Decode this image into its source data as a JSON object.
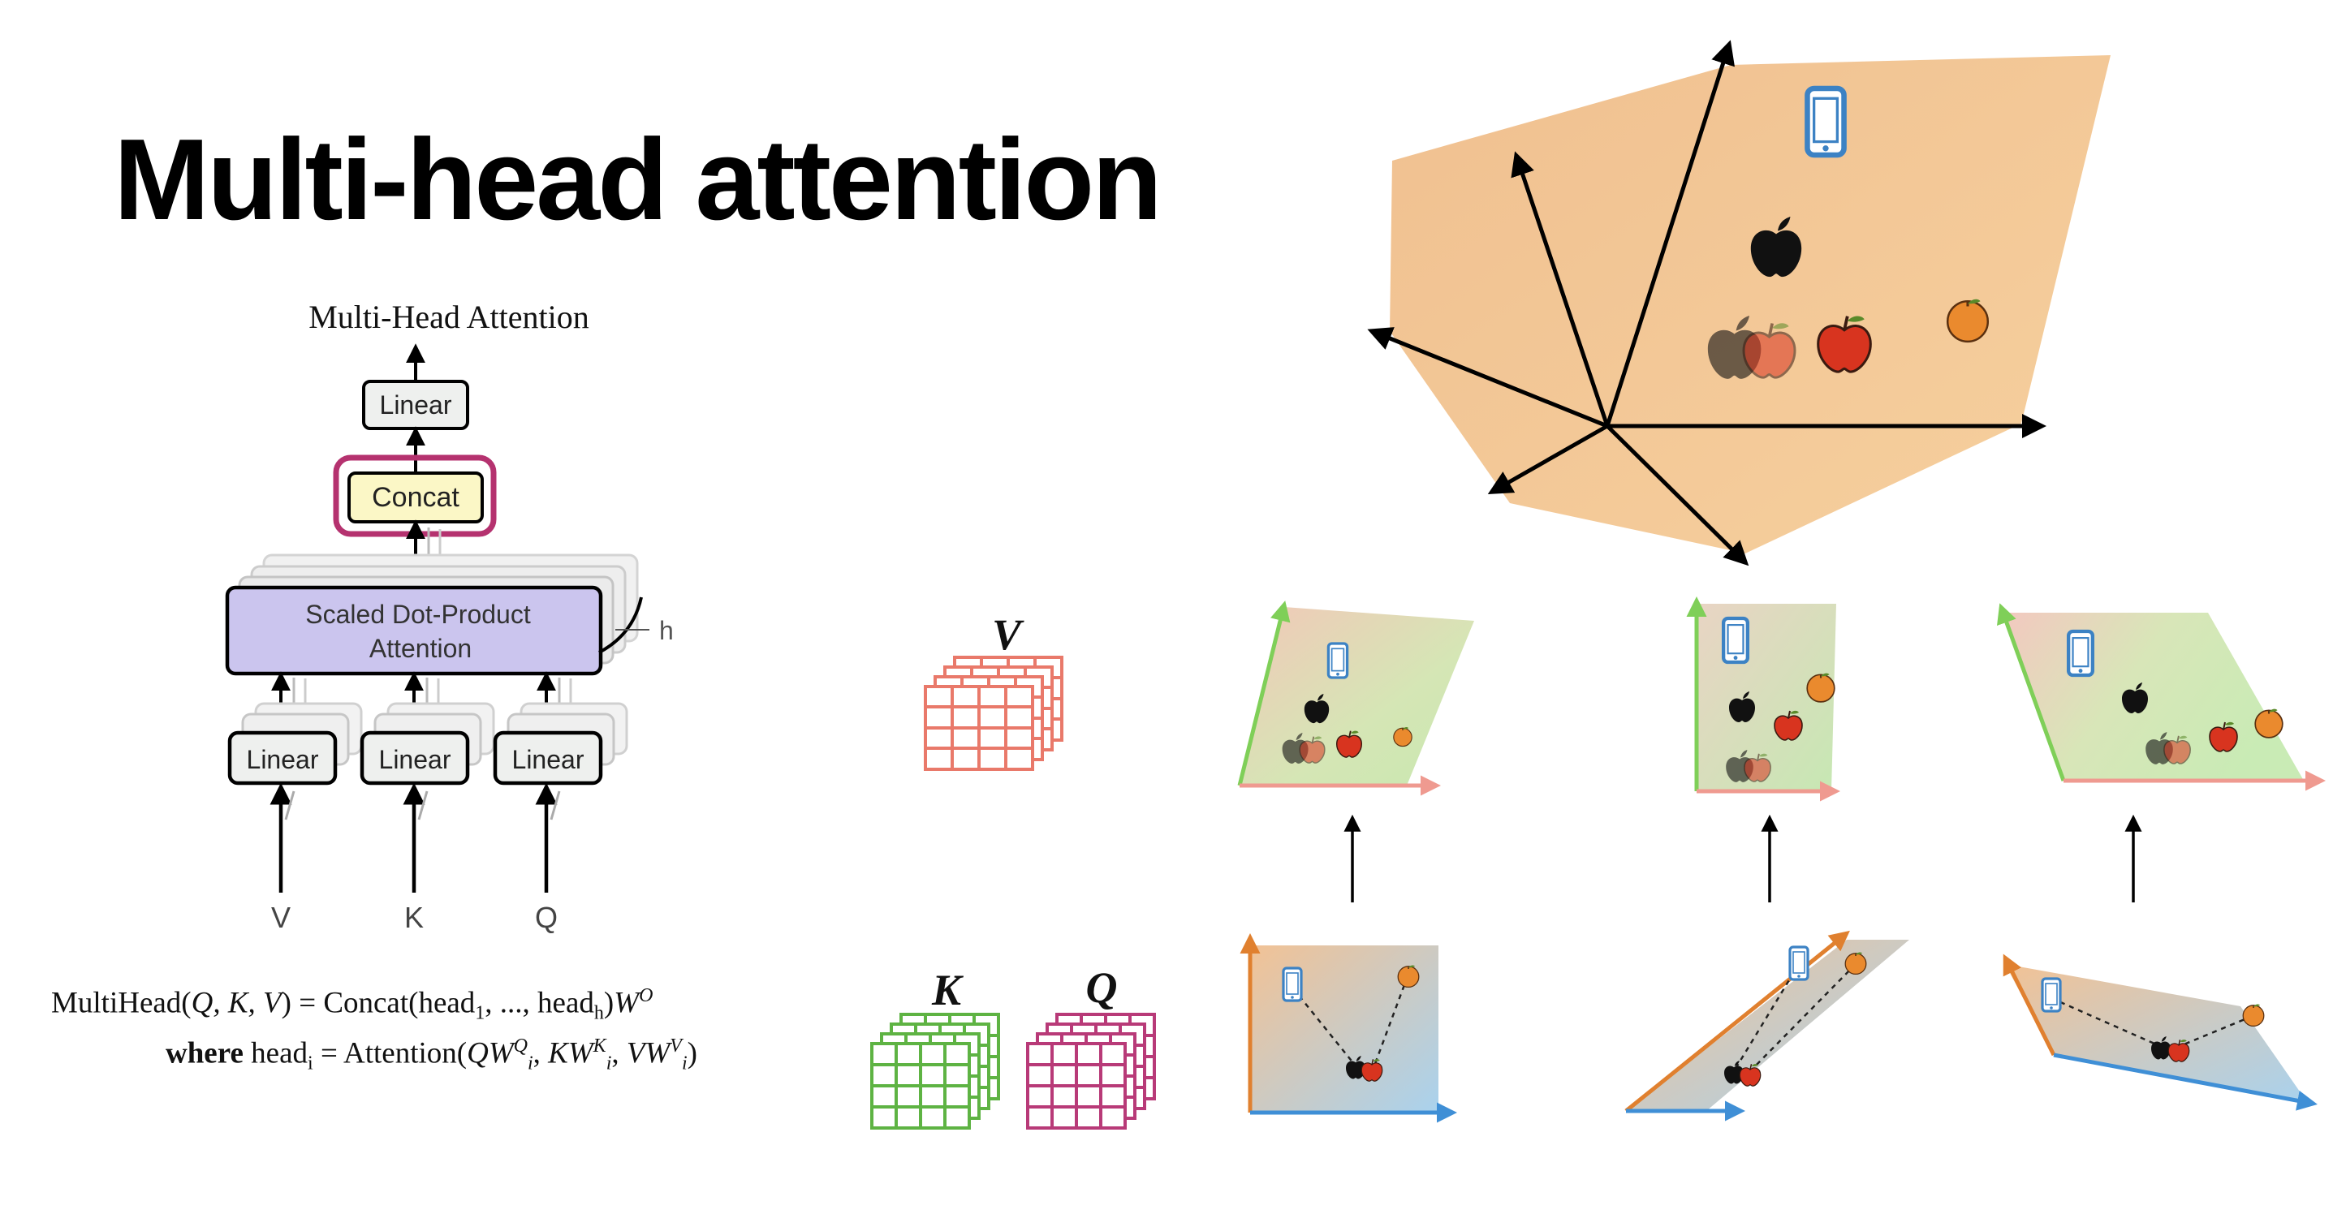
{
  "title": "Multi-head attention",
  "architecture": {
    "heading": "Multi-Head Attention",
    "top_linear": "Linear",
    "concat": "Concat",
    "attention_line1": "Scaled Dot-Product",
    "attention_line2": "Attention",
    "h_label": "h",
    "linear_v": "Linear",
    "linear_k": "Linear",
    "linear_q": "Linear",
    "input_v": "V",
    "input_k": "K",
    "input_q": "Q",
    "colors": {
      "concat_fill": "#fbf7c6",
      "concat_highlight": "#b5326f",
      "attention_fill": "#cbc5ee",
      "linear_fill": "#eef0ee"
    }
  },
  "formula": {
    "line1_lhs": "MultiHead(",
    "line1_args": "Q, K, V",
    "line1_eq": ") = Concat(head",
    "line1_sub1": "1",
    "line1_mid": ", ..., head",
    "line1_subh": "h",
    "line1_tail": ")",
    "line1_w": "W",
    "line1_sup": "O",
    "line2_where": "where",
    "line2_head": "head",
    "line2_sub": "i",
    "line2_eq": " = Attention(",
    "line2_q": "QW",
    "line2_q_sup": "Q",
    "line2_k": "KW",
    "line2_k_sup": "K",
    "line2_v": "VW",
    "line2_v_sup": "V",
    "line2_sub_i": "i",
    "line2_close": ")"
  },
  "matrices": {
    "v_label": "V",
    "k_label": "K",
    "q_label": "Q",
    "colors": {
      "v": "#e9796a",
      "k": "#5eb343",
      "q": "#b83a78"
    }
  },
  "icons": [
    "phone-icon",
    "apple-logo-icon",
    "apple-icon",
    "orange-icon"
  ],
  "colors": {
    "main_plane": "#f2c693",
    "green_axis": "#7fcf58",
    "pink_axis": "#ef9a90",
    "orange_axis": "#e0802f",
    "blue_axis": "#3f8fd6",
    "phone": "#3c82c4",
    "apple": "#d8341f",
    "orange": "#ea8a2e"
  }
}
